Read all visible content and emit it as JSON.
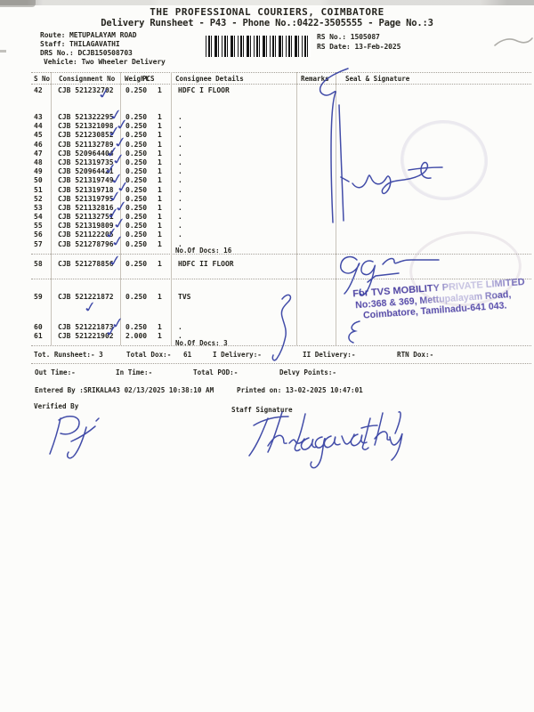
{
  "page": {
    "title": "THE PROFESSIONAL COURIERS, COIMBATORE",
    "subtitle": "Delivery Runsheet - P43 - Phone No.:0422-3505555 - Page No.:3"
  },
  "info": {
    "route": "Route: METUPALAYAM ROAD",
    "staff": "Staff: THILAGAVATHI",
    "drs_no": "DRS No.: DCJB150508703",
    "vehicle": "Vehicle: Two Wheeler Delivery",
    "rs_no": "RS No.: 1505087",
    "rs_date": "RS Date: 13-Feb-2025"
  },
  "table": {
    "columns": [
      "S No",
      "Consignment No",
      "Weight",
      "PCS",
      "Consignee Details",
      "Remarks",
      "Seal & Signature"
    ],
    "rows": [
      {
        "sno": "42",
        "consignment": "CJB 521232702",
        "weight": "0.250",
        "pcs": "1",
        "consignee": "HDFC I FLOOR",
        "checked": true
      },
      {
        "sno": "43",
        "consignment": "CJB 521322295",
        "weight": "0.250",
        "pcs": "1",
        "consignee": ".",
        "checked": true
      },
      {
        "sno": "44",
        "consignment": "CJB 521321098",
        "weight": "0.250",
        "pcs": "1",
        "consignee": ".",
        "checked": true
      },
      {
        "sno": "45",
        "consignment": "CJB 521230852",
        "weight": "0.250",
        "pcs": "1",
        "consignee": ".",
        "checked": true
      },
      {
        "sno": "46",
        "consignment": "CJB 521132789",
        "weight": "0.250",
        "pcs": "1",
        "consignee": ".",
        "checked": true
      },
      {
        "sno": "47",
        "consignment": "CJB 520964404",
        "weight": "0.250",
        "pcs": "1",
        "consignee": ".",
        "checked": true
      },
      {
        "sno": "48",
        "consignment": "CJB 521319735",
        "weight": "0.250",
        "pcs": "1",
        "consignee": ".",
        "checked": true
      },
      {
        "sno": "49",
        "consignment": "CJB 520964421",
        "weight": "0.250",
        "pcs": "1",
        "consignee": ".",
        "checked": true
      },
      {
        "sno": "50",
        "consignment": "CJB 521319749",
        "weight": "0.250",
        "pcs": "1",
        "consignee": ".",
        "checked": true
      },
      {
        "sno": "51",
        "consignment": "CJB 521319718",
        "weight": "0.250",
        "pcs": "1",
        "consignee": ".",
        "checked": true
      },
      {
        "sno": "52",
        "consignment": "CJB 521319795",
        "weight": "0.250",
        "pcs": "1",
        "consignee": ".",
        "checked": true
      },
      {
        "sno": "53",
        "consignment": "CJB 521132816",
        "weight": "0.250",
        "pcs": "1",
        "consignee": ".",
        "checked": true
      },
      {
        "sno": "54",
        "consignment": "CJB 521132751",
        "weight": "0.250",
        "pcs": "1",
        "consignee": ".",
        "checked": true
      },
      {
        "sno": "55",
        "consignment": "CJB 521319809",
        "weight": "0.250",
        "pcs": "1",
        "consignee": ".",
        "checked": true
      },
      {
        "sno": "56",
        "consignment": "CJB 521122205",
        "weight": "0.250",
        "pcs": "1",
        "consignee": ".",
        "checked": true
      },
      {
        "sno": "57",
        "consignment": "CJB 521278796",
        "weight": "0.250",
        "pcs": "1",
        "consignee": ".",
        "checked": true
      },
      {
        "sno": "58",
        "consignment": "CJB 521278856",
        "weight": "0.250",
        "pcs": "1",
        "consignee": "HDFC II FLOOR",
        "checked": true
      },
      {
        "sno": "59",
        "consignment": "CJB 521221872",
        "weight": "0.250",
        "pcs": "1",
        "consignee": "TVS",
        "checked": true
      },
      {
        "sno": "60",
        "consignment": "CJB 521221873",
        "weight": "0.250",
        "pcs": "1",
        "consignee": ".",
        "checked": true
      },
      {
        "sno": "61",
        "consignment": "CJB 521221902",
        "weight": "2.000",
        "pcs": "1",
        "consignee": ".",
        "checked": true
      }
    ],
    "docs_note_1": "No.Of Docs: 16",
    "docs_note_2": "No.Of Docs: 3"
  },
  "totals": {
    "runsheet": "Tot. Runsheet:- 3",
    "total_dox_label": "Total Dox:-",
    "total_dox_value": "61",
    "i_delivery": "I Delivery:-",
    "ii_delivery": "II Delivery:-",
    "rtn_dox": "RTN Dox:-",
    "out_time": "Out Time:-",
    "in_time": "In Time:-",
    "total_pod": "Total POD:-",
    "delvy_points": "Delvy Points:-"
  },
  "footer": {
    "entered_by": "Entered By :SRIKALA43 02/13/2025 10:38:10 AM",
    "printed_on": "Printed on: 13-02-2025 10:47:01",
    "verified_by": "Verified By",
    "staff_signature_label": "Staff Signature"
  },
  "stamp": {
    "line1": "For TVS MOBILITY PRIVATE LIMITED",
    "line2": "No:368 & 369, Mettupalayam Road,",
    "line3": "Coimbatore, Tamilnadu-641 043."
  },
  "ink": {
    "pen_color": "#2e3aa0",
    "stamp_color": "#4e43a6",
    "text_color": "#26251f"
  }
}
